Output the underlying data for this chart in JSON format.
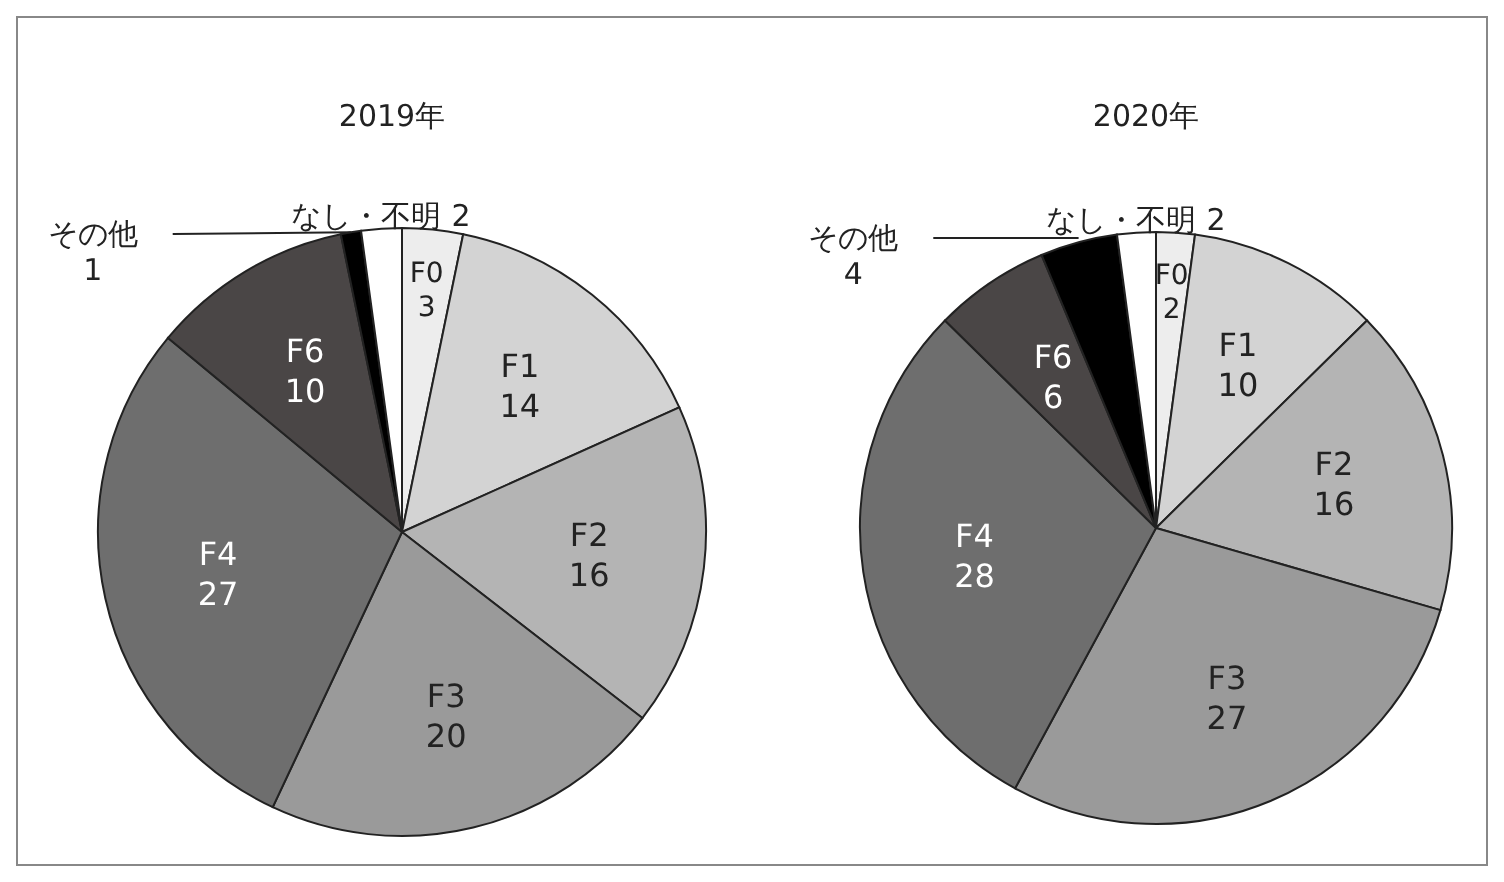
{
  "chart_data": [
    {
      "type": "pie",
      "title": "2019年",
      "categories": [
        "F0",
        "F1",
        "F2",
        "F3",
        "F4",
        "F6",
        "その他",
        "なし・不明"
      ],
      "values": [
        3,
        14,
        16,
        20,
        27,
        10,
        1,
        2
      ],
      "colors": [
        "#ededed",
        "#d3d3d3",
        "#b4b4b4",
        "#9a9a9a",
        "#6e6e6e",
        "#4a4646",
        "#000000",
        "#ffffff"
      ],
      "data_labels": true
    },
    {
      "type": "pie",
      "title": "2020年",
      "categories": [
        "F0",
        "F1",
        "F2",
        "F3",
        "F4",
        "F6",
        "その他",
        "なし・不明"
      ],
      "values": [
        2,
        10,
        16,
        27,
        28,
        6,
        4,
        2
      ],
      "colors": [
        "#ededed",
        "#d3d3d3",
        "#b4b4b4",
        "#9a9a9a",
        "#6e6e6e",
        "#4a4646",
        "#000000",
        "#ffffff"
      ],
      "data_labels": true
    }
  ]
}
